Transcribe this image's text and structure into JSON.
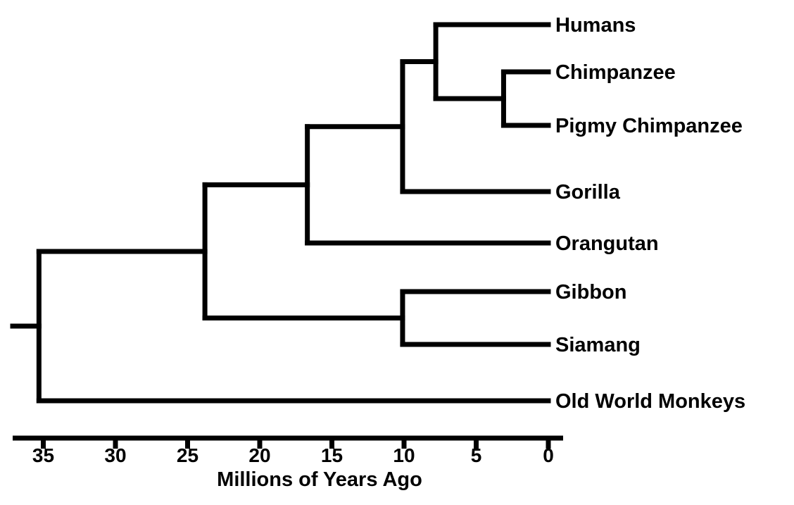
{
  "tree": {
    "taxa": [
      {
        "name": "Humans",
        "age": 0
      },
      {
        "name": "Chimpanzee",
        "age": 0
      },
      {
        "name": "Pigmy Chimpanzee",
        "age": 0
      },
      {
        "name": "Gorilla",
        "age": 0
      },
      {
        "name": "Orangutan",
        "age": 0
      },
      {
        "name": "Gibbon",
        "age": 0
      },
      {
        "name": "Siamang",
        "age": 0
      },
      {
        "name": "Old World Monkeys",
        "age": 0
      }
    ],
    "nodes": [
      {
        "id": "chimp_pigmy",
        "age": 3.1,
        "children": [
          "Chimpanzee",
          "Pigmy Chimpanzee"
        ]
      },
      {
        "id": "human_chimps",
        "age": 7.8,
        "children": [
          "Humans",
          "chimp_pigmy"
        ]
      },
      {
        "id": "african_apes",
        "age": 10.1,
        "children": [
          "human_chimps",
          "Gorilla"
        ]
      },
      {
        "id": "great_apes",
        "age": 16.7,
        "children": [
          "african_apes",
          "Orangutan"
        ]
      },
      {
        "id": "gibbons",
        "age": 10.1,
        "children": [
          "Gibbon",
          "Siamang"
        ]
      },
      {
        "id": "apes",
        "age": 23.8,
        "children": [
          "great_apes",
          "gibbons"
        ]
      },
      {
        "id": "catarrhines",
        "age": 35.3,
        "children": [
          "apes",
          "Old World Monkeys"
        ]
      }
    ],
    "root": "catarrhines"
  },
  "axis": {
    "title": "Millions of Years Ago",
    "ticks": [
      35,
      30,
      25,
      20,
      15,
      10,
      5,
      0
    ],
    "min": 0,
    "max": 37.5,
    "reversed": true
  }
}
